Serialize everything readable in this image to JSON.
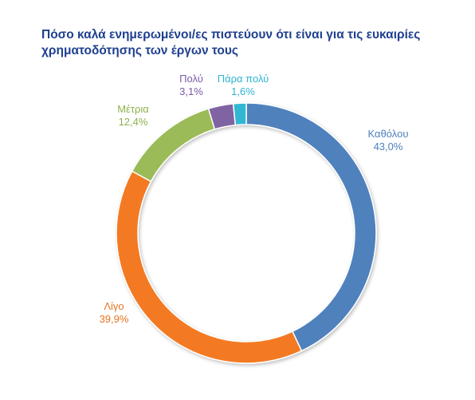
{
  "chart_data": {
    "type": "pie",
    "variant": "donut",
    "title": "Πόσο καλά ενημερωμένοι/ες πιστεύουν ότι είναι για τις ευκαιρίες χρηματοδότησης των έργων τους",
    "categories": [
      "Καθόλου",
      "Λίγο",
      "Μέτρια",
      "Πολύ",
      "Πάρα πολύ"
    ],
    "values": [
      43.0,
      39.9,
      12.4,
      3.1,
      1.6
    ],
    "value_labels": [
      "43,0%",
      "39,9%",
      "12,4%",
      "3,1%",
      "1,6%"
    ],
    "colors": [
      "#4f81bd",
      "#f37a22",
      "#9bbb59",
      "#8064a2",
      "#31b7d3"
    ],
    "label_colors": [
      "#4f81bd",
      "#e8731f",
      "#8db24c",
      "#7a5aa6",
      "#2fb3cf"
    ],
    "start_angle_deg": 0,
    "direction": "clockwise",
    "legend": "none"
  }
}
